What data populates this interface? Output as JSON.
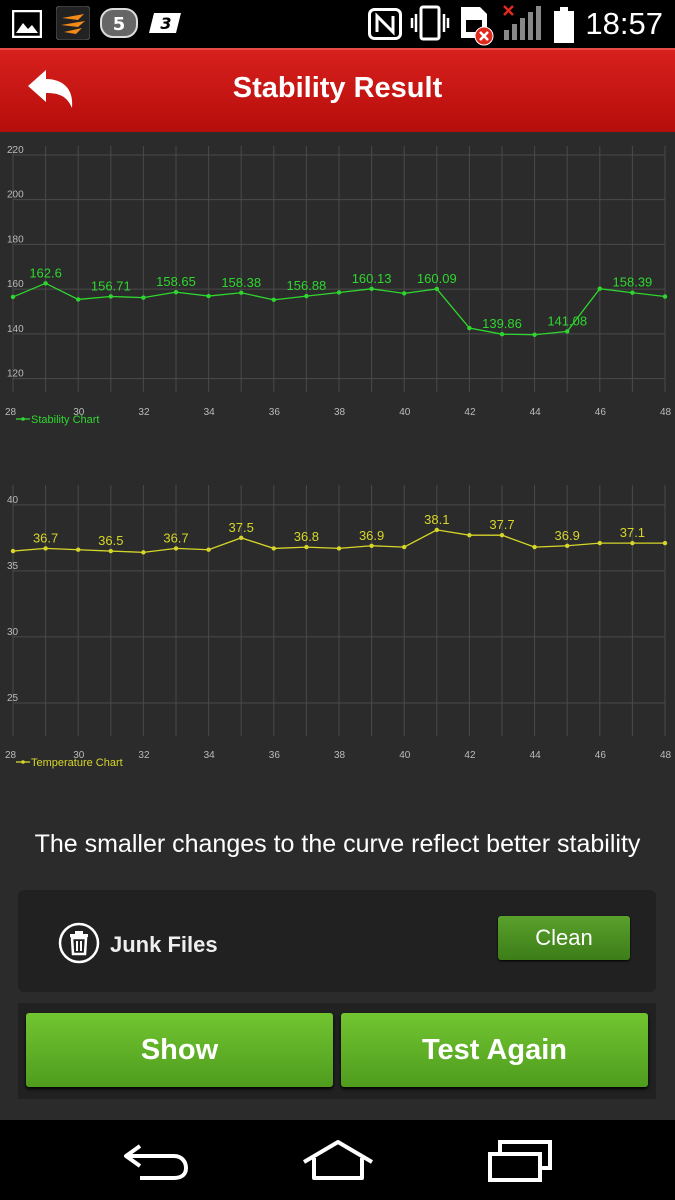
{
  "status_bar": {
    "time": "18:57",
    "left_icons": [
      "gallery-icon",
      "speed-test-app-icon",
      "game-app-icon",
      "carrier-3-icon"
    ],
    "right_icons": [
      "nfc-icon",
      "vibrate-icon",
      "sim-error-icon",
      "signal-no-service-icon",
      "battery-icon"
    ]
  },
  "app_bar": {
    "title": "Stability Result",
    "back_icon": "back-arrow-icon",
    "color": "#c8130f"
  },
  "chart_data": [
    {
      "type": "line",
      "legend": "Stability Chart",
      "legend_position": "bottom-left",
      "color": "#2fd62f",
      "grid": true,
      "x": [
        28,
        29,
        30,
        31,
        32,
        33,
        34,
        35,
        36,
        37,
        38,
        39,
        40,
        41,
        42,
        43,
        44,
        45,
        46,
        47,
        48
      ],
      "values": [
        156.5,
        162.6,
        155.4,
        156.71,
        156.2,
        158.65,
        156.9,
        158.38,
        155.2,
        156.88,
        158.5,
        160.13,
        158.1,
        160.09,
        142.6,
        139.86,
        139.6,
        141.08,
        160.2,
        158.39,
        156.7
      ],
      "point_labels": [
        {
          "x": 29,
          "text": "162.6"
        },
        {
          "x": 31,
          "text": "156.71"
        },
        {
          "x": 33,
          "text": "158.65"
        },
        {
          "x": 35,
          "text": "158.38"
        },
        {
          "x": 37,
          "text": "156.88"
        },
        {
          "x": 39,
          "text": "160.13"
        },
        {
          "x": 41,
          "text": "160.09"
        },
        {
          "x": 43,
          "text": "139.86"
        },
        {
          "x": 45,
          "text": "141.08"
        },
        {
          "x": 47,
          "text": "158.39"
        }
      ],
      "x_ticks": [
        28,
        30,
        32,
        34,
        36,
        38,
        40,
        42,
        44,
        46,
        48
      ],
      "y_ticks": [
        120,
        140,
        160,
        180,
        200,
        220
      ],
      "xlim": [
        28,
        48
      ],
      "ylim": [
        114,
        224
      ]
    },
    {
      "type": "line",
      "legend": "Temperature Chart",
      "legend_position": "bottom-left",
      "color": "#d6d62a",
      "grid": true,
      "x": [
        28,
        29,
        30,
        31,
        32,
        33,
        34,
        35,
        36,
        37,
        38,
        39,
        40,
        41,
        42,
        43,
        44,
        45,
        46,
        47,
        48
      ],
      "values": [
        36.5,
        36.7,
        36.6,
        36.5,
        36.4,
        36.7,
        36.6,
        37.5,
        36.7,
        36.8,
        36.7,
        36.9,
        36.8,
        38.1,
        37.7,
        37.7,
        36.8,
        36.9,
        37.1,
        37.1,
        37.1
      ],
      "point_labels": [
        {
          "x": 29,
          "text": "36.7"
        },
        {
          "x": 31,
          "text": "36.5"
        },
        {
          "x": 33,
          "text": "36.7"
        },
        {
          "x": 35,
          "text": "37.5"
        },
        {
          "x": 37,
          "text": "36.8"
        },
        {
          "x": 39,
          "text": "36.9"
        },
        {
          "x": 41,
          "text": "38.1"
        },
        {
          "x": 43,
          "text": "37.7"
        },
        {
          "x": 45,
          "text": "36.9"
        },
        {
          "x": 47,
          "text": "37.1"
        }
      ],
      "x_ticks": [
        28,
        30,
        32,
        34,
        36,
        38,
        40,
        42,
        44,
        46,
        48
      ],
      "y_ticks": [
        25,
        30,
        35,
        40
      ],
      "xlim": [
        28,
        48
      ],
      "ylim": [
        22.5,
        41.5
      ]
    }
  ],
  "caption": "The smaller changes to the curve reflect better stability",
  "junk_files": {
    "icon": "trash-can-icon",
    "label": "Junk Files",
    "button": "Clean"
  },
  "actions": {
    "show": "Show",
    "test_again": "Test Again",
    "accent": "#5fae26"
  },
  "nav_bar": {
    "icons": [
      "back-icon",
      "home-icon",
      "recent-apps-icon"
    ]
  }
}
